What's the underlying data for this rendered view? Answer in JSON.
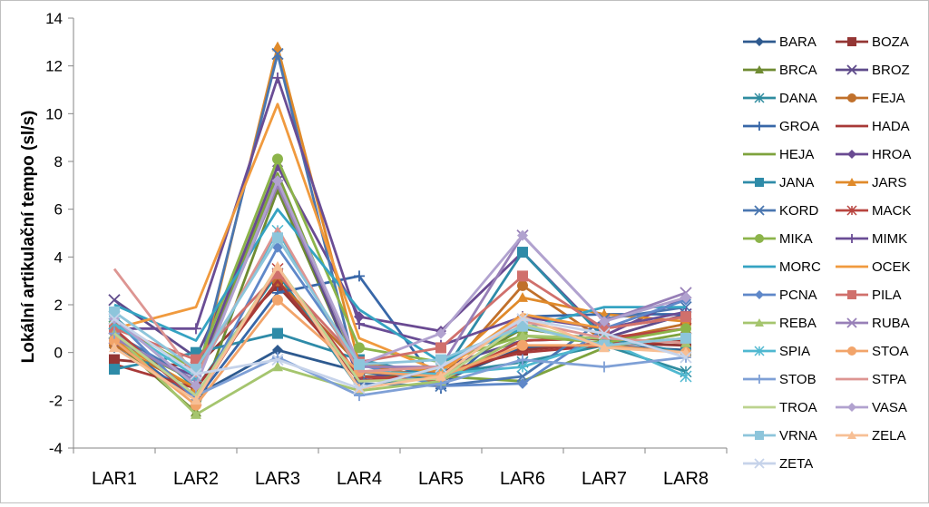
{
  "chart_data": {
    "type": "line",
    "ylabel": "Lokální artikulační tempo (sl/s)",
    "xlabel": "",
    "title": "",
    "categories": [
      "LAR1",
      "LAR2",
      "LAR3",
      "LAR4",
      "LAR5",
      "LAR6",
      "LAR7",
      "LAR8"
    ],
    "ylim": [
      -4,
      14
    ],
    "yticks": [
      -4,
      -2,
      0,
      2,
      4,
      6,
      8,
      10,
      12,
      14
    ],
    "grid": false,
    "legend_position": "right",
    "series": [
      {
        "name": "BARA",
        "color": "#2e5a8f",
        "marker": "diamond",
        "values": [
          0.2,
          -1.8,
          0.1,
          -0.8,
          -1.2,
          0.2,
          0.3,
          0.1
        ]
      },
      {
        "name": "BOZA",
        "color": "#943634",
        "marker": "square",
        "values": [
          -0.3,
          -0.6,
          2.8,
          -1.0,
          -1.0,
          0.1,
          0.4,
          0.3
        ]
      },
      {
        "name": "BRCA",
        "color": "#6f8b32",
        "marker": "triangle",
        "values": [
          0.5,
          -2.5,
          6.8,
          -1.0,
          -1.0,
          1.0,
          0.5,
          1.0
        ]
      },
      {
        "name": "BROZ",
        "color": "#5f4b8b",
        "marker": "x",
        "values": [
          2.2,
          -0.2,
          7.2,
          -1.1,
          -0.6,
          0.5,
          0.6,
          1.6
        ]
      },
      {
        "name": "DANA",
        "color": "#2f8c9f",
        "marker": "asterisk",
        "values": [
          1.5,
          -1.5,
          3.3,
          -1.5,
          -0.9,
          -0.4,
          0.3,
          -0.8
        ]
      },
      {
        "name": "FEJA",
        "color": "#c0702b",
        "marker": "circle",
        "values": [
          0.3,
          -1.5,
          3.0,
          -0.5,
          -1.1,
          2.8,
          0.5,
          1.2
        ]
      },
      {
        "name": "GROA",
        "color": "#3867a8",
        "marker": "plus",
        "values": [
          0.5,
          -2.0,
          2.5,
          3.2,
          -1.5,
          1.5,
          1.6,
          1.6
        ]
      },
      {
        "name": "HADA",
        "color": "#a83a38",
        "marker": "none",
        "values": [
          -0.5,
          -1.5,
          3.0,
          -1.2,
          -0.8,
          0.0,
          0.3,
          0.5
        ]
      },
      {
        "name": "HEJA",
        "color": "#7ea33d",
        "marker": "none",
        "values": [
          0.5,
          -1.2,
          7.5,
          -0.8,
          -1.0,
          -1.2,
          0.2,
          0.8
        ]
      },
      {
        "name": "HROA",
        "color": "#6a4a92",
        "marker": "diamond",
        "values": [
          0.4,
          -1.0,
          7.8,
          1.5,
          0.9,
          4.2,
          0.7,
          2.3
        ]
      },
      {
        "name": "JANA",
        "color": "#2e8ba8",
        "marker": "square",
        "values": [
          -0.7,
          0.0,
          0.8,
          -0.3,
          -1.0,
          4.2,
          0.6,
          0.0
        ]
      },
      {
        "name": "JARS",
        "color": "#e08a2a",
        "marker": "triangle",
        "values": [
          0.5,
          -1.5,
          12.8,
          -0.5,
          -0.8,
          2.3,
          1.6,
          1.3
        ]
      },
      {
        "name": "KORD",
        "color": "#4a76b0",
        "marker": "x",
        "values": [
          0.8,
          -1.2,
          12.5,
          -1.3,
          -1.4,
          -1.0,
          1.4,
          1.9
        ]
      },
      {
        "name": "MACK",
        "color": "#b8443f",
        "marker": "asterisk",
        "values": [
          1.0,
          -2.0,
          3.5,
          -1.0,
          -1.2,
          0.5,
          0.6,
          1.0
        ]
      },
      {
        "name": "MIKA",
        "color": "#8cb44a",
        "marker": "circle",
        "values": [
          1.2,
          -0.7,
          8.1,
          0.2,
          -0.4,
          0.7,
          0.4,
          1.0
        ]
      },
      {
        "name": "MIMK",
        "color": "#6a4d95",
        "marker": "plus",
        "values": [
          1.0,
          1.0,
          11.5,
          1.2,
          0.3,
          1.5,
          1.0,
          1.7
        ]
      },
      {
        "name": "MORC",
        "color": "#35a3c2",
        "marker": "none",
        "values": [
          2.0,
          0.5,
          6.0,
          1.8,
          -0.4,
          1.0,
          1.9,
          1.9
        ]
      },
      {
        "name": "OCEK",
        "color": "#f09a3e",
        "marker": "none",
        "values": [
          1.0,
          1.9,
          10.4,
          0.6,
          -0.8,
          1.6,
          1.0,
          1.5
        ]
      },
      {
        "name": "PCNA",
        "color": "#5f88c9",
        "marker": "diamond",
        "values": [
          1.4,
          -2.0,
          4.4,
          -0.5,
          -1.4,
          -1.3,
          1.0,
          2.2
        ]
      },
      {
        "name": "PILA",
        "color": "#d0706c",
        "marker": "square",
        "values": [
          1.0,
          -0.3,
          3.3,
          -0.4,
          0.2,
          3.2,
          1.0,
          1.5
        ]
      },
      {
        "name": "REBA",
        "color": "#a5c56e",
        "marker": "triangle",
        "values": [
          0.8,
          -2.6,
          -0.6,
          -1.6,
          -1.2,
          0.7,
          0.6,
          0.4
        ]
      },
      {
        "name": "RUBA",
        "color": "#9880b8",
        "marker": "x",
        "values": [
          0.6,
          -1.2,
          7.0,
          -0.6,
          -0.6,
          4.9,
          1.3,
          2.5
        ]
      },
      {
        "name": "SPIA",
        "color": "#4fb8d0",
        "marker": "asterisk",
        "values": [
          1.2,
          -1.0,
          5.1,
          -0.8,
          -0.9,
          -0.6,
          0.5,
          -1.0
        ]
      },
      {
        "name": "STOA",
        "color": "#f2a46a",
        "marker": "circle",
        "values": [
          0.5,
          -2.2,
          2.2,
          -0.8,
          -1.0,
          0.3,
          0.3,
          0.0
        ]
      },
      {
        "name": "STOB",
        "color": "#7fa0d6",
        "marker": "plus",
        "values": [
          0.8,
          -1.8,
          -0.2,
          -1.8,
          -1.3,
          -0.3,
          -0.6,
          -0.2
        ]
      },
      {
        "name": "STPA",
        "color": "#dd9592",
        "marker": "none",
        "values": [
          3.5,
          -1.0,
          5.2,
          -0.8,
          -0.6,
          1.3,
          0.6,
          0.4
        ]
      },
      {
        "name": "TROA",
        "color": "#bcd38f",
        "marker": "none",
        "values": [
          0.8,
          -1.8,
          3.6,
          -1.2,
          -1.1,
          1.2,
          0.3,
          0.6
        ]
      },
      {
        "name": "VASA",
        "color": "#b1a2cf",
        "marker": "diamond",
        "values": [
          1.4,
          -1.4,
          7.2,
          -0.5,
          0.8,
          4.9,
          1.3,
          2.3
        ]
      },
      {
        "name": "VRNA",
        "color": "#8dc5db",
        "marker": "square",
        "values": [
          1.7,
          -0.7,
          4.8,
          -0.5,
          -0.3,
          1.1,
          0.3,
          0.6
        ]
      },
      {
        "name": "ZELA",
        "color": "#f7bf95",
        "marker": "triangle",
        "values": [
          0.2,
          -2.0,
          3.6,
          -1.5,
          -1.0,
          1.5,
          0.2,
          0.0
        ]
      },
      {
        "name": "ZETA",
        "color": "#c6d3ea",
        "marker": "x",
        "values": [
          1.4,
          -0.9,
          -0.3,
          -1.5,
          -0.6,
          1.4,
          0.8,
          -0.2
        ]
      }
    ]
  }
}
